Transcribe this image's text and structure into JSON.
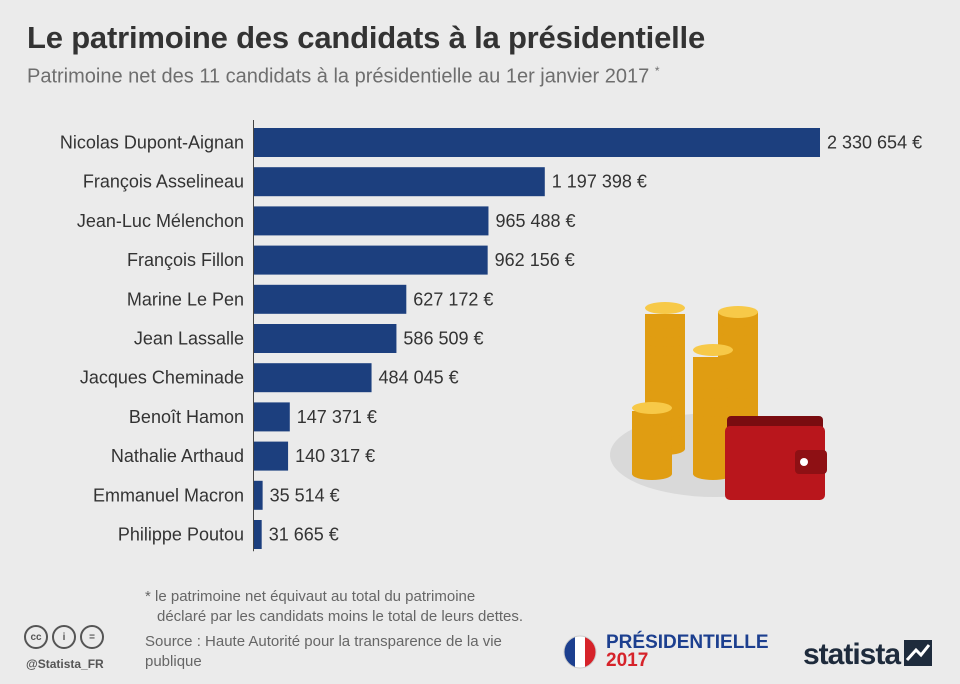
{
  "title": "Le patrimoine des candidats à la présidentielle",
  "subtitle": "Patrimoine net des 11 candidats à la présidentielle au 1er janvier 2017",
  "subtitle_mark": "*",
  "footnote_line1": "* le patrimoine net équivaut au total du patrimoine",
  "footnote_line2": "déclaré par les candidats moins le total de leurs dettes.",
  "source": "Source : Haute Autorité pour la transparence de la vie publique",
  "handle": "@Statista_FR",
  "badge": {
    "line1": "PRÉSIDENTIELLE",
    "line2": "2017"
  },
  "brand": "statista",
  "colors": {
    "bar": "#1c3f7e",
    "background": "#ebebeb",
    "coin": "#f2b21c",
    "wallet": "#b9161c"
  },
  "chart_data": {
    "type": "bar",
    "orientation": "horizontal",
    "categories": [
      "Nicolas Dupont-Aignan",
      "François Asselineau",
      "Jean-Luc Mélenchon",
      "François Fillon",
      "Marine Le Pen",
      "Jean Lassalle",
      "Jacques Cheminade",
      "Benoît Hamon",
      "Nathalie Arthaud",
      "Emmanuel Macron",
      "Philippe Poutou"
    ],
    "values": [
      2330654,
      1197398,
      965488,
      962156,
      627172,
      586509,
      484045,
      147371,
      140317,
      35514,
      31665
    ],
    "value_labels": [
      "2 330 654 €",
      "1 197 398 €",
      "965 488 €",
      "962 156 €",
      "627 172 €",
      "586 509 €",
      "484 045 €",
      "147 371 €",
      "140 317 €",
      "35 514 €",
      "31 665 €"
    ],
    "xlim": [
      0,
      2330654
    ],
    "grid": false,
    "legend": "none"
  }
}
